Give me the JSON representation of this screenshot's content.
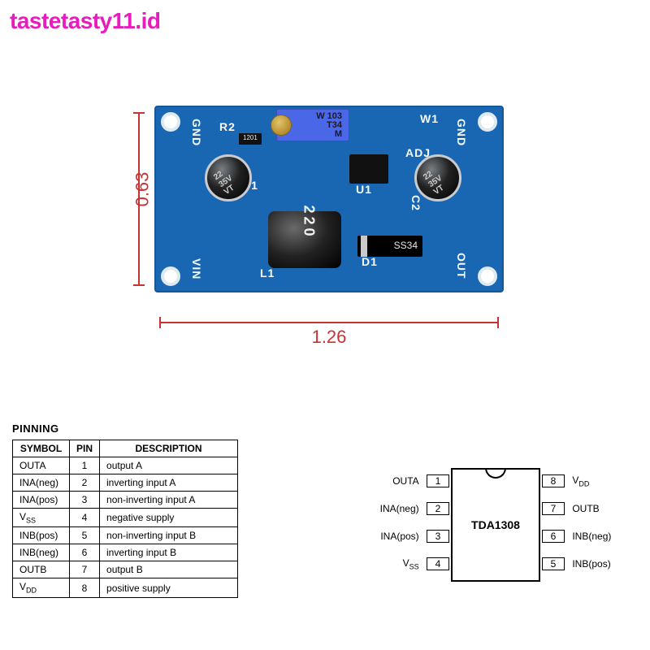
{
  "watermark": {
    "text": "tastetasty11.id",
    "color": "#e81bbd"
  },
  "pcb": {
    "color": "#1967b3",
    "dim_color": "#c73232",
    "width_label": "1.26",
    "height_label": "0.63",
    "silk": {
      "gnd_l": "GND",
      "gnd_r": "GND",
      "vin": "VIN",
      "out": "OUT",
      "c1": "C1",
      "c2": "C2",
      "r2": "R2",
      "l1": "L1",
      "d1": "D1",
      "u1": "U1",
      "w1": "W1",
      "adj": "ADJ"
    },
    "trimpot": {
      "line1": "W   103",
      "line2": "T34",
      "line3": "M"
    },
    "cap_mark": "22\n35V\nVT",
    "inductor_mark": "220",
    "diode_mark": "SS34",
    "smd_mark": "1201"
  },
  "table": {
    "heading": "PINNING",
    "columns": [
      "SYMBOL",
      "PIN",
      "DESCRIPTION"
    ],
    "rows": [
      [
        "OUTA",
        "1",
        "output A"
      ],
      [
        "INA(neg)",
        "2",
        "inverting input A"
      ],
      [
        "INA(pos)",
        "3",
        "non-inverting input A"
      ],
      [
        "V_SS",
        "4",
        "negative supply"
      ],
      [
        "INB(pos)",
        "5",
        "non-inverting input B"
      ],
      [
        "INB(neg)",
        "6",
        "inverting input B"
      ],
      [
        "OUTB",
        "7",
        "output B"
      ],
      [
        "V_DD",
        "8",
        "positive supply"
      ]
    ]
  },
  "chip": {
    "name": "TDA1308",
    "left_pins": [
      {
        "n": "1",
        "label": "OUTA"
      },
      {
        "n": "2",
        "label": "INA(neg)"
      },
      {
        "n": "3",
        "label": "INA(pos)"
      },
      {
        "n": "4",
        "label": "V_SS"
      }
    ],
    "right_pins": [
      {
        "n": "8",
        "label": "V_DD"
      },
      {
        "n": "7",
        "label": "OUTB"
      },
      {
        "n": "6",
        "label": "INB(neg)"
      },
      {
        "n": "5",
        "label": "INB(pos)"
      }
    ]
  }
}
